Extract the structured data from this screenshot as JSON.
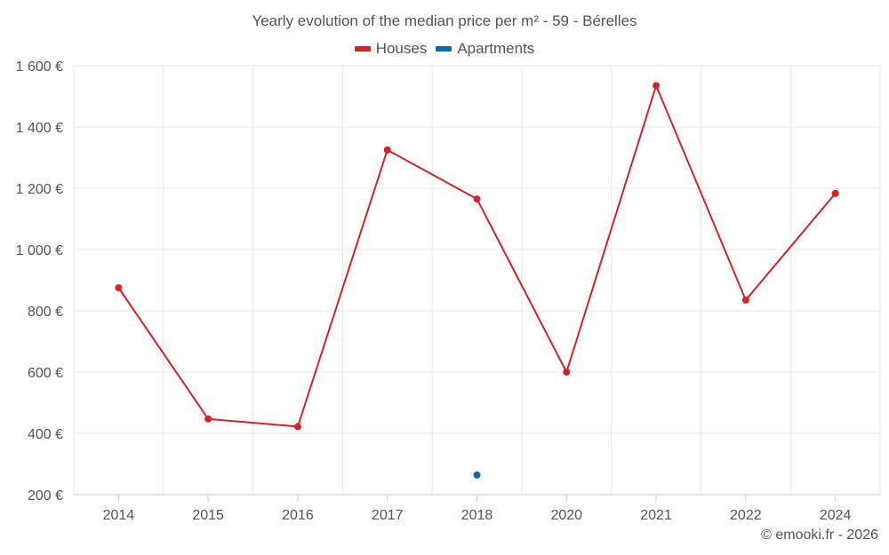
{
  "chart_data": {
    "type": "line",
    "title": "Yearly evolution of the median price per m² - 59 - Bérelles",
    "categories": [
      "2014",
      "2015",
      "2016",
      "2017",
      "2018",
      "2020",
      "2021",
      "2022",
      "2024"
    ],
    "y_ticks": [
      "200 €",
      "400 €",
      "600 €",
      "800 €",
      "1 000 €",
      "1 200 €",
      "1 400 €",
      "1 600 €"
    ],
    "ylim": [
      200,
      1600
    ],
    "grid": true,
    "legend_position": "top-center",
    "series": [
      {
        "name": "Houses",
        "color": "#d32528",
        "values": [
          875,
          447,
          422,
          1325,
          1165,
          600,
          1535,
          835,
          1183
        ]
      },
      {
        "name": "Apartments",
        "color": "#0e6aa6",
        "values": [
          null,
          null,
          null,
          null,
          264,
          null,
          null,
          null,
          null
        ]
      }
    ],
    "credit": "© emooki.fr - 2026"
  }
}
